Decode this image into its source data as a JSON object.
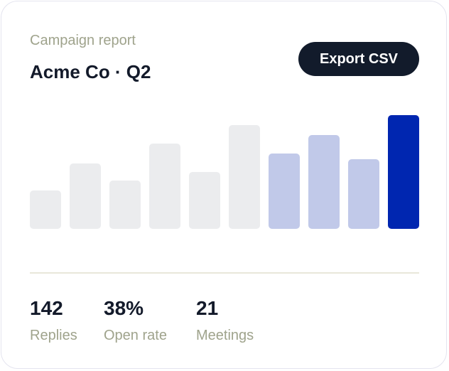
{
  "header": {
    "subtitle": "Campaign report",
    "title": "Acme Co · Q2"
  },
  "button": "Export CSV",
  "chart_data": {
    "type": "bar",
    "values": [
      54,
      92,
      68,
      120,
      80,
      146,
      106,
      132,
      98,
      160
    ],
    "colors": [
      "#ebecee",
      "#ebecee",
      "#ebecee",
      "#ebecee",
      "#ebecee",
      "#ebecee",
      "#c1c9e9",
      "#c1c9e9",
      "#c1c9e9",
      "#0026b0"
    ]
  },
  "stats": [
    {
      "value": "142",
      "label": "Replies"
    },
    {
      "value": "38%",
      "label": "Open rate"
    },
    {
      "value": "21",
      "label": "Meetings"
    }
  ]
}
